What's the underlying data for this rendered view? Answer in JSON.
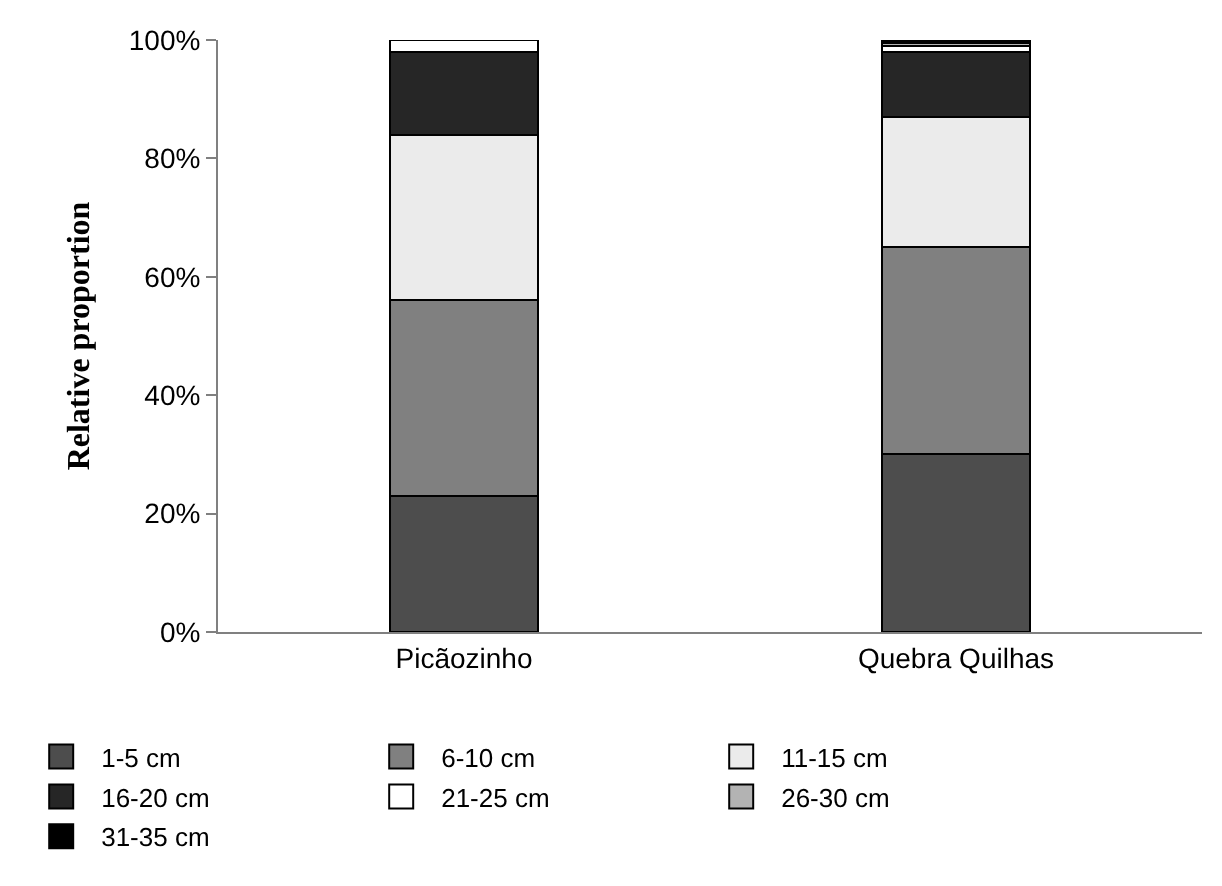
{
  "chart_data": {
    "type": "bar",
    "stacked": true,
    "ylabel": "Relative proportion",
    "categories": [
      "Picãozinho",
      "Quebra Quilhas"
    ],
    "series": [
      {
        "name": "1-5 cm",
        "color": "#4d4d4d",
        "values": [
          23,
          30
        ]
      },
      {
        "name": "6-10 cm",
        "color": "#808080",
        "values": [
          33,
          35
        ]
      },
      {
        "name": "11-15 cm",
        "color": "#ebebeb",
        "values": [
          28,
          22
        ]
      },
      {
        "name": "16-20 cm",
        "color": "#262626",
        "values": [
          14,
          11
        ]
      },
      {
        "name": "21-25 cm",
        "color": "#ffffff",
        "values": [
          2,
          1
        ]
      },
      {
        "name": "26-30 cm",
        "color": "#b3b3b3",
        "values": [
          0,
          0.5
        ]
      },
      {
        "name": "31-35 cm",
        "color": "#000000",
        "values": [
          0,
          0.5
        ]
      }
    ],
    "ylim": [
      0,
      100
    ],
    "yticks": [
      {
        "value": 0,
        "label": "0%"
      },
      {
        "value": 20,
        "label": "20%"
      },
      {
        "value": 40,
        "label": "40%"
      },
      {
        "value": 60,
        "label": "60%"
      },
      {
        "value": 80,
        "label": "80%"
      },
      {
        "value": 100,
        "label": "100%"
      }
    ],
    "grid": false,
    "legend": "bottom"
  }
}
